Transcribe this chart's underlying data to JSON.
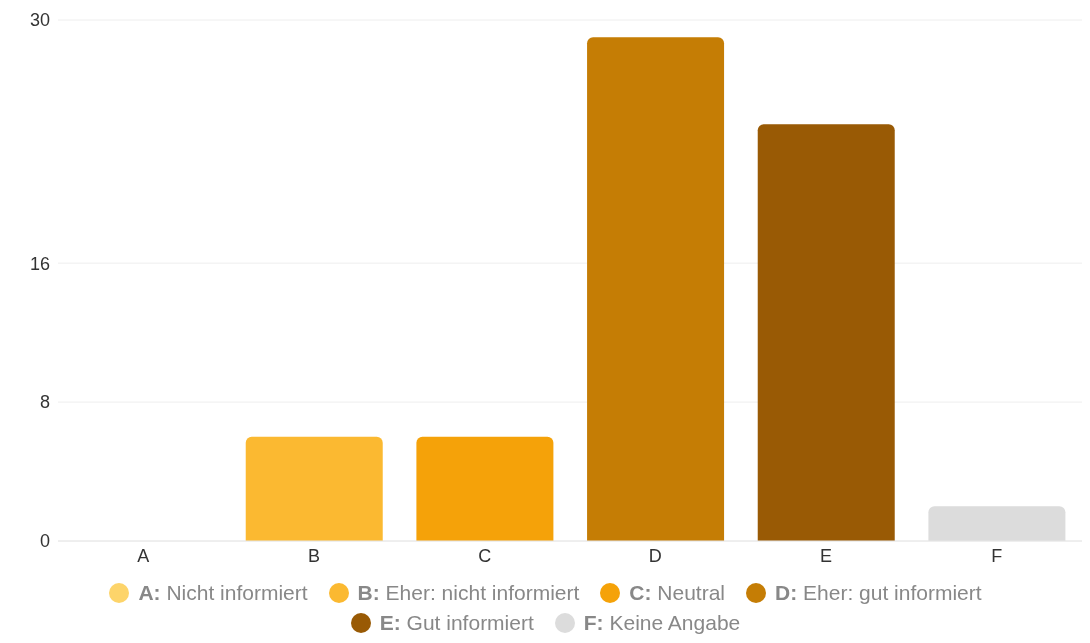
{
  "chart_data": {
    "type": "bar",
    "categories": [
      "A",
      "B",
      "C",
      "D",
      "E",
      "F"
    ],
    "stacked": true,
    "series": [
      {
        "name": "A: Nicht informiert",
        "color": "#fdd46a",
        "values": [
          0,
          null,
          null,
          null,
          null,
          null
        ]
      },
      {
        "name": "B: Eher: nicht informiert",
        "color": "#fbb931",
        "values": [
          null,
          6,
          null,
          null,
          null,
          null
        ]
      },
      {
        "name": "C: Neutral",
        "color": "#f5a209",
        "values": [
          null,
          null,
          6,
          null,
          null,
          null
        ]
      },
      {
        "name": "D: Eher: gut informiert",
        "color": "#c57d05",
        "values": [
          null,
          null,
          null,
          29,
          null,
          null
        ]
      },
      {
        "name": "E: Gut informiert",
        "color": "#995a05",
        "values": [
          null,
          null,
          null,
          null,
          24,
          null
        ]
      },
      {
        "name": "F: Keine Angabe",
        "color": "#dcdcdc",
        "values": [
          null,
          null,
          null,
          null,
          null,
          2
        ]
      }
    ],
    "ylim": [
      0,
      30
    ],
    "yticks": [
      0,
      8,
      16,
      30
    ],
    "grid": "y",
    "legend": "bottom"
  }
}
